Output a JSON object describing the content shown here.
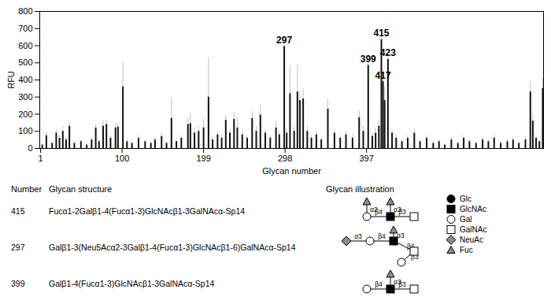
{
  "chart_data": {
    "type": "bar",
    "x_label": "Glycan number",
    "y_label": "RFU",
    "xlim": [
      0,
      612
    ],
    "xticks": [
      1,
      100,
      199,
      298,
      397
    ],
    "ylim": [
      0,
      800
    ],
    "yticks": [
      0,
      100,
      200,
      300,
      400,
      500,
      600,
      700,
      800
    ],
    "grid": false,
    "color": "#111111",
    "x": [
      3,
      8,
      15,
      20,
      24,
      28,
      32,
      36,
      42,
      50,
      57,
      63,
      68,
      72,
      77,
      81,
      86,
      92,
      95,
      101,
      106,
      112,
      120,
      128,
      135,
      140,
      148,
      154,
      160,
      166,
      172,
      180,
      183,
      188,
      193,
      199,
      205,
      210,
      216,
      221,
      226,
      231,
      236,
      240,
      246,
      252,
      258,
      263,
      268,
      274,
      280,
      287,
      291,
      297,
      300,
      304,
      309,
      313,
      316,
      320,
      325,
      330,
      336,
      342,
      350,
      358,
      365,
      372,
      380,
      388,
      393,
      399,
      404,
      408,
      412,
      415,
      417,
      419,
      423,
      428,
      433,
      440,
      447,
      455,
      462,
      470,
      478,
      485,
      492,
      500,
      508,
      515,
      522,
      530,
      538,
      545,
      552,
      560,
      568,
      575,
      582,
      590,
      596,
      599,
      603,
      607,
      611
    ],
    "values": [
      20,
      75,
      30,
      90,
      60,
      100,
      50,
      130,
      30,
      40,
      20,
      50,
      120,
      40,
      130,
      140,
      60,
      120,
      125,
      360,
      40,
      30,
      60,
      40,
      30,
      50,
      70,
      30,
      175,
      40,
      60,
      140,
      145,
      90,
      100,
      120,
      300,
      50,
      80,
      60,
      165,
      90,
      170,
      120,
      80,
      60,
      175,
      100,
      195,
      90,
      60,
      120,
      80,
      595,
      90,
      320,
      100,
      330,
      280,
      290,
      100,
      60,
      80,
      50,
      230,
      90,
      60,
      80,
      60,
      180,
      100,
      485,
      70,
      90,
      130,
      635,
      390,
      280,
      520,
      90,
      60,
      40,
      60,
      90,
      40,
      60,
      30,
      40,
      20,
      50,
      30,
      60,
      40,
      30,
      50,
      40,
      60,
      30,
      40,
      50,
      30,
      50,
      330,
      160,
      60,
      40,
      350
    ],
    "errors": [
      10,
      20,
      10,
      20,
      15,
      30,
      15,
      20,
      10,
      10,
      10,
      15,
      20,
      10,
      30,
      25,
      15,
      30,
      20,
      140,
      10,
      10,
      15,
      10,
      10,
      15,
      20,
      10,
      120,
      10,
      15,
      40,
      60,
      30,
      30,
      50,
      230,
      15,
      20,
      20,
      30,
      20,
      40,
      60,
      20,
      15,
      40,
      30,
      60,
      20,
      15,
      40,
      20,
      10,
      30,
      160,
      30,
      160,
      50,
      60,
      30,
      15,
      20,
      15,
      60,
      20,
      15,
      20,
      20,
      40,
      30,
      20,
      20,
      30,
      40,
      30,
      60,
      80,
      40,
      20,
      15,
      10,
      15,
      20,
      10,
      15,
      10,
      10,
      10,
      15,
      10,
      15,
      10,
      10,
      15,
      10,
      15,
      10,
      10,
      15,
      10,
      20,
      60,
      40,
      15,
      10,
      60
    ],
    "annotations": [
      {
        "x": 297,
        "y": 595,
        "text": "297"
      },
      {
        "x": 399,
        "y": 485,
        "text": "399"
      },
      {
        "x": 415,
        "y": 635,
        "text": "415"
      },
      {
        "x": 417,
        "y": 390,
        "text": "417"
      },
      {
        "x": 423,
        "y": 520,
        "text": "423"
      }
    ]
  },
  "table": {
    "header": [
      "Number",
      "Glycan structure",
      "Glycan illustration"
    ],
    "rows": [
      {
        "number": 415,
        "structure": "Fucα1-2Galβ1-4(Fucα1-3)GlcNAcβ1-3GalNAcα-Sp14",
        "illustration": [
          {
            "sugar": "GalNAc",
            "link": null
          },
          {
            "sugar": "GlcNAc",
            "link": "β3"
          },
          {
            "sugar": "Gal",
            "link": "β4"
          },
          {
            "sugar": "Fuc",
            "link": "α3"
          },
          {
            "sugar": "Fuc",
            "link": "α2"
          }
        ]
      },
      {
        "number": 297,
        "structure": "Galβ1-3(Neu5Acα2-3Galβ1-4(Fucα1-3)GlcNAcβ1-6)GalNAcα-Sp14",
        "illustration": [
          {
            "sugar": "GalNAc",
            "link": null
          },
          {
            "sugar": "GlcNAc",
            "link": "β6"
          },
          {
            "sugar": "Gal",
            "link": "β4"
          },
          {
            "sugar": "NeuAc",
            "link": "α3"
          },
          {
            "sugar": "Fuc",
            "link": "α3"
          },
          {
            "sugar": "Gal",
            "link": "β3"
          }
        ]
      },
      {
        "number": 399,
        "structure": "Galβ1-4(Fucα1-3)GlcNAcβ1-3GalNAcα-Sp14",
        "illustration": [
          {
            "sugar": "GalNAc",
            "link": null
          },
          {
            "sugar": "GlcNAc",
            "link": "β3"
          },
          {
            "sugar": "Gal",
            "link": "β4"
          },
          {
            "sugar": "Fuc",
            "link": "α3"
          }
        ]
      }
    ]
  },
  "symbol_legend": [
    "Glc",
    "GlcNAc",
    "Gal",
    "GalNAc",
    "NeuAc",
    "Fuc"
  ]
}
